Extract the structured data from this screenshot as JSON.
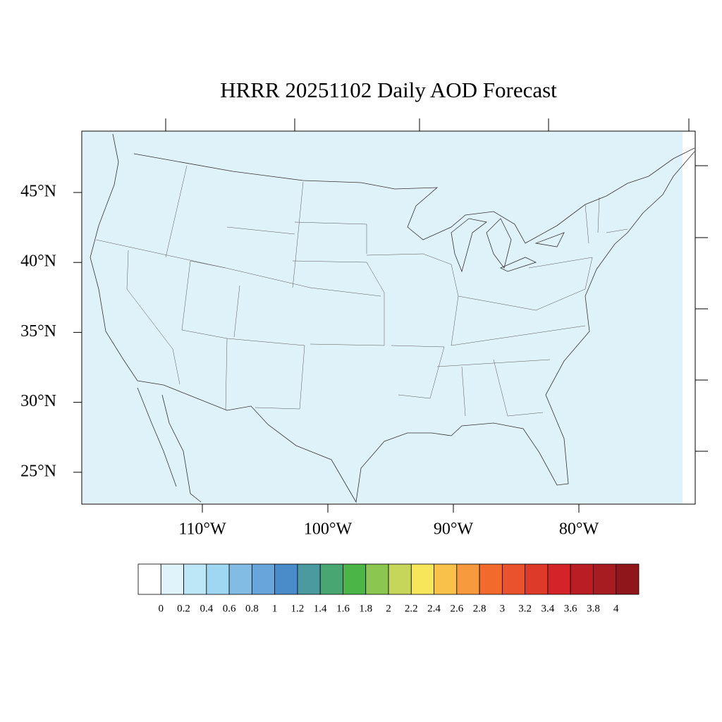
{
  "map": {
    "title": "HRRR 20251102 Daily AOD Forecast",
    "lat_labels": [
      "45°N",
      "40°N",
      "35°N",
      "30°N",
      "25°N"
    ],
    "lon_labels": [
      "110°W",
      "100°W",
      "90°W",
      "80°W"
    ],
    "colorbar": {
      "labels": [
        "0",
        "0.2",
        "0.4",
        "0.6",
        "0.8",
        "1",
        "1.2",
        "1.4",
        "1.6",
        "1.8",
        "2",
        "2.2",
        "2.4",
        "2.6",
        "2.8",
        "3",
        "3.2",
        "3.4",
        "3.6",
        "3.8",
        "4"
      ],
      "colors": [
        "#ffffff",
        "#e0f3fb",
        "#bde6f7",
        "#9fd7f3",
        "#82bce5",
        "#68a5da",
        "#4a8bc9",
        "#4a9a9f",
        "#48a673",
        "#4bb548",
        "#8ac650",
        "#c5d65a",
        "#f7e65a",
        "#f9c04a",
        "#f79a3e",
        "#f26b2d",
        "#e9522c",
        "#de3a2a",
        "#d42329",
        "#ba1d24",
        "#a71c21",
        "#8f161b"
      ]
    }
  }
}
